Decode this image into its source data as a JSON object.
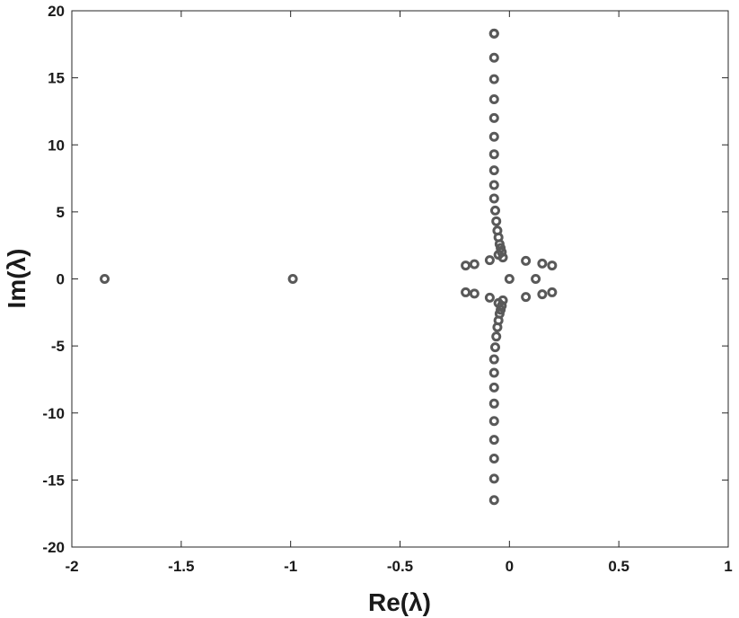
{
  "chart_data": {
    "type": "scatter",
    "xlabel": "Re(λ)",
    "ylabel": "Im(λ)",
    "xlim": [
      -2,
      1
    ],
    "ylim": [
      -20,
      20
    ],
    "xticks": [
      "-2",
      "-1.5",
      "-1",
      "-0.5",
      "0",
      "0.5",
      "1"
    ],
    "yticks": [
      "20",
      "15",
      "10",
      "5",
      "0",
      "-5",
      "-10",
      "-15",
      "-20"
    ],
    "grid": false,
    "marker_color": "#595959",
    "series": [
      {
        "points": [
          [
            -1.85,
            0
          ],
          [
            -0.99,
            0
          ],
          [
            -0.07,
            18.3
          ],
          [
            -0.07,
            16.5
          ],
          [
            -0.07,
            14.9
          ],
          [
            -0.07,
            13.4
          ],
          [
            -0.07,
            12.0
          ],
          [
            -0.07,
            10.6
          ],
          [
            -0.07,
            9.3
          ],
          [
            -0.07,
            8.1
          ],
          [
            -0.07,
            7.0
          ],
          [
            -0.07,
            6.0
          ],
          [
            -0.065,
            5.1
          ],
          [
            -0.06,
            4.3
          ],
          [
            -0.055,
            3.6
          ],
          [
            -0.05,
            3.1
          ],
          [
            -0.045,
            2.6
          ],
          [
            -0.04,
            2.3
          ],
          [
            -0.035,
            2.0
          ],
          [
            -0.05,
            1.8
          ],
          [
            -0.03,
            1.6
          ],
          [
            -0.07,
            18.3
          ],
          [
            -0.07,
            -16.5
          ],
          [
            -0.07,
            -14.9
          ],
          [
            -0.07,
            -13.4
          ],
          [
            -0.07,
            -12.0
          ],
          [
            -0.07,
            -10.6
          ],
          [
            -0.07,
            -9.3
          ],
          [
            -0.07,
            -8.1
          ],
          [
            -0.07,
            -7.0
          ],
          [
            -0.07,
            -6.0
          ],
          [
            -0.065,
            -5.1
          ],
          [
            -0.06,
            -4.3
          ],
          [
            -0.055,
            -3.6
          ],
          [
            -0.05,
            -3.1
          ],
          [
            -0.045,
            -2.6
          ],
          [
            -0.04,
            -2.3
          ],
          [
            -0.035,
            -2.0
          ],
          [
            -0.05,
            -1.8
          ],
          [
            -0.03,
            -1.6
          ],
          [
            -0.2,
            1.0
          ],
          [
            -0.16,
            1.1
          ],
          [
            -0.09,
            1.4
          ],
          [
            0.075,
            1.35
          ],
          [
            0.15,
            1.15
          ],
          [
            0.195,
            1.0
          ],
          [
            -0.2,
            -1.0
          ],
          [
            -0.16,
            -1.1
          ],
          [
            -0.09,
            -1.4
          ],
          [
            0.075,
            -1.35
          ],
          [
            0.15,
            -1.15
          ],
          [
            0.195,
            -1.0
          ],
          [
            0.0,
            0.0
          ],
          [
            0.12,
            0.0
          ]
        ]
      }
    ]
  }
}
